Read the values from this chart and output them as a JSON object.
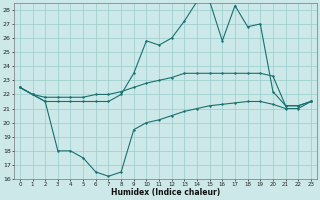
{
  "xlabel": "Humidex (Indice chaleur)",
  "bg_color": "#cce8e8",
  "grid_color": "#99cccc",
  "line_color": "#1a7070",
  "xlim": [
    -0.5,
    23.5
  ],
  "ylim": [
    16,
    28.5
  ],
  "xticks": [
    0,
    1,
    2,
    3,
    4,
    5,
    6,
    7,
    8,
    9,
    10,
    11,
    12,
    13,
    14,
    15,
    16,
    17,
    18,
    19,
    20,
    21,
    22,
    23
  ],
  "yticks": [
    16,
    17,
    18,
    19,
    20,
    21,
    22,
    23,
    24,
    25,
    26,
    27,
    28
  ],
  "line_top_x": [
    0,
    1,
    2,
    3,
    4,
    5,
    6,
    7,
    8,
    9,
    10,
    11,
    12,
    13,
    14,
    15,
    16,
    17,
    18,
    19,
    20,
    21,
    22,
    23
  ],
  "line_top_y": [
    22.5,
    22.0,
    21.5,
    21.5,
    21.5,
    21.5,
    21.5,
    21.5,
    22.0,
    23.5,
    25.8,
    25.5,
    26.0,
    27.2,
    28.6,
    28.6,
    25.8,
    28.3,
    26.8,
    27.0,
    22.2,
    21.2,
    21.2,
    21.5
  ],
  "line_mid_x": [
    0,
    1,
    2,
    3,
    4,
    5,
    6,
    7,
    8,
    9,
    10,
    11,
    12,
    13,
    14,
    15,
    16,
    17,
    18,
    19,
    20,
    21,
    22,
    23
  ],
  "line_mid_y": [
    22.5,
    22.0,
    21.8,
    21.8,
    21.8,
    21.8,
    22.0,
    22.0,
    22.2,
    22.5,
    22.8,
    23.0,
    23.2,
    23.5,
    23.5,
    23.5,
    23.5,
    23.5,
    23.5,
    23.5,
    23.3,
    21.2,
    21.2,
    21.5
  ],
  "line_bot_x": [
    0,
    1,
    2,
    3,
    4,
    5,
    6,
    7,
    8,
    9,
    10,
    11,
    12,
    13,
    14,
    15,
    16,
    17,
    18,
    19,
    20,
    21,
    22,
    23
  ],
  "line_bot_y": [
    22.5,
    22.0,
    21.5,
    18.0,
    18.0,
    17.5,
    16.5,
    16.2,
    16.5,
    19.5,
    20.0,
    20.2,
    20.5,
    20.8,
    21.0,
    21.2,
    21.3,
    21.4,
    21.5,
    21.5,
    21.3,
    21.0,
    21.0,
    21.5
  ]
}
